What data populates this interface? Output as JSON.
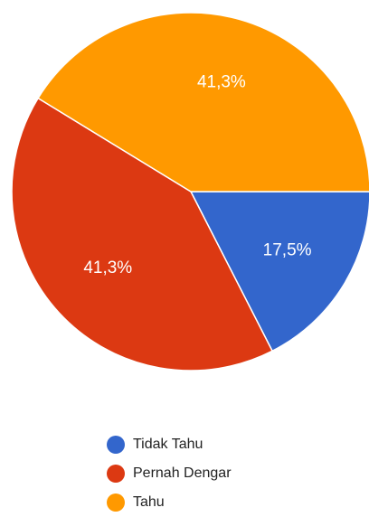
{
  "chart_data": {
    "type": "pie",
    "title": "",
    "slices": [
      {
        "label": "Tidak Tahu",
        "value": 17.5,
        "display": "17,5%",
        "color": "#3366cc"
      },
      {
        "label": "Pernah Dengar",
        "value": 41.3,
        "display": "41,3%",
        "color": "#dc3912"
      },
      {
        "label": "Tahu",
        "value": 41.3,
        "display": "41,3%",
        "color": "#ff9900"
      }
    ],
    "start_angle_deg": 0,
    "direction": "clockwise",
    "legend": {
      "position": "bottom",
      "items": [
        "Tidak Tahu",
        "Pernah Dengar",
        "Tahu"
      ]
    }
  }
}
